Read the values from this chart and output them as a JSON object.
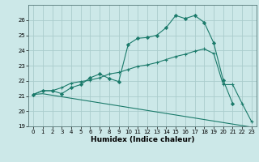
{
  "background_color": "#cce8e8",
  "grid_color": "#aacccc",
  "line_color": "#1a7a6a",
  "xlabel": "Humidex (Indice chaleur)",
  "ylim": [
    19,
    27
  ],
  "xlim": [
    -0.5,
    23.5
  ],
  "yticks": [
    19,
    20,
    21,
    22,
    23,
    24,
    25,
    26
  ],
  "xticks": [
    0,
    1,
    2,
    3,
    4,
    5,
    6,
    7,
    8,
    9,
    10,
    11,
    12,
    13,
    14,
    15,
    16,
    17,
    18,
    19,
    20,
    21,
    22,
    23
  ],
  "line1_x": [
    0,
    1,
    2,
    3,
    4,
    5,
    6,
    7,
    8,
    9,
    10,
    11,
    12,
    13,
    14,
    15,
    16,
    17,
    18,
    19,
    20,
    21
  ],
  "line1_y": [
    21.1,
    21.35,
    21.35,
    21.15,
    21.55,
    21.75,
    22.2,
    22.45,
    22.15,
    21.95,
    24.4,
    24.8,
    24.85,
    25.0,
    25.5,
    26.3,
    26.1,
    26.3,
    25.85,
    24.5,
    22.05,
    20.5
  ],
  "line2_x": [
    0,
    1,
    2,
    3,
    4,
    5,
    6,
    7,
    8,
    9,
    10,
    11,
    12,
    13,
    14,
    15,
    16,
    17,
    18,
    19,
    20,
    21,
    22,
    23
  ],
  "line2_y": [
    21.1,
    21.35,
    21.35,
    21.55,
    21.85,
    21.95,
    22.05,
    22.2,
    22.45,
    22.55,
    22.75,
    22.95,
    23.05,
    23.2,
    23.4,
    23.6,
    23.75,
    23.95,
    24.1,
    23.8,
    21.75,
    21.75,
    20.5,
    19.3
  ],
  "line3_x": [
    0,
    1,
    2,
    3,
    4,
    5,
    6,
    7,
    8,
    9,
    10,
    11,
    12,
    13,
    14,
    15,
    16,
    17,
    18,
    19,
    20,
    21,
    22,
    23
  ],
  "line3_y": [
    21.1,
    21.15,
    21.05,
    20.95,
    20.85,
    20.75,
    20.65,
    20.55,
    20.45,
    20.35,
    20.25,
    20.15,
    20.05,
    19.95,
    19.85,
    19.75,
    19.65,
    19.55,
    19.45,
    19.35,
    19.25,
    19.15,
    19.05,
    18.95
  ]
}
